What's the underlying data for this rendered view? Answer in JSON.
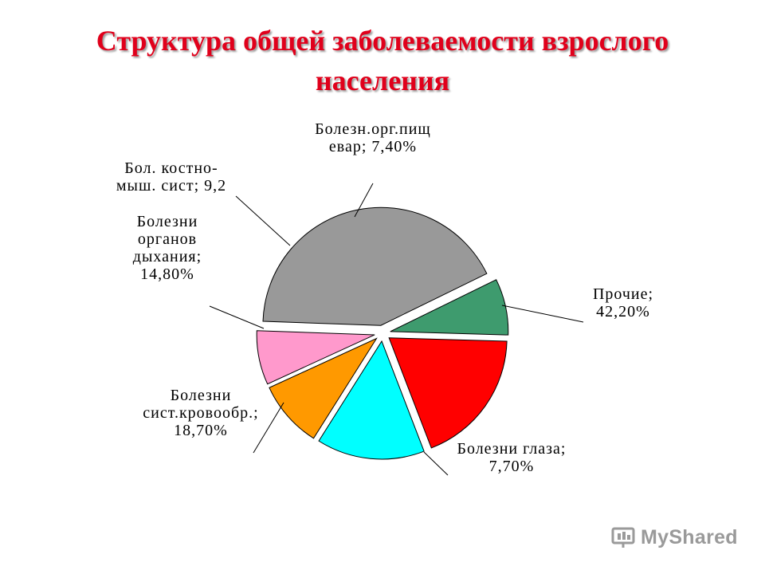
{
  "header": {
    "title_line1": "Структура общей заболеваемости взрослого",
    "title_line2": "населения"
  },
  "watermark": {
    "text": "MyShared"
  },
  "colors": {
    "title": "#e0001b",
    "Прочие": "#999999",
    "Болезни глаза": "#3e9b6e",
    "Болезни сист.кровообр.": "#ff0000",
    "Болезни органов дыхания": "#00ffff",
    "Бол. костно-мыш. сист": "#ff9900",
    "Болезн.орг.пищевар": "#ff99cc"
  },
  "chart_data": {
    "type": "pie",
    "title": "Структура общей заболеваемости взрослого населения",
    "exploded": true,
    "slices": [
      {
        "name": "Прочие",
        "value": 42.2,
        "label_lines": [
          "Прочие;",
          "42,20%"
        ]
      },
      {
        "name": "Болезни глаза",
        "value": 7.7,
        "label_lines": [
          "Болезни глаза;",
          "7,70%"
        ]
      },
      {
        "name": "Болезни сист.кровообр.",
        "value": 18.7,
        "label_lines": [
          "Болезни",
          "сист.кровообр.;",
          "18,70%"
        ]
      },
      {
        "name": "Болезни органов дыхания",
        "value": 14.8,
        "label_lines": [
          "Болезни",
          "органов",
          "дыхания;",
          "14,80%"
        ]
      },
      {
        "name": "Бол. костно-мыш. сист",
        "value": 9.2,
        "label_lines": [
          "Бол. костно-",
          "мыш. сист; 9,2"
        ]
      },
      {
        "name": "Болезн.орг.пищевар",
        "value": 7.4,
        "label_lines": [
          "Болезн.орг.пищ",
          "евар; 7,40%"
        ]
      }
    ]
  }
}
